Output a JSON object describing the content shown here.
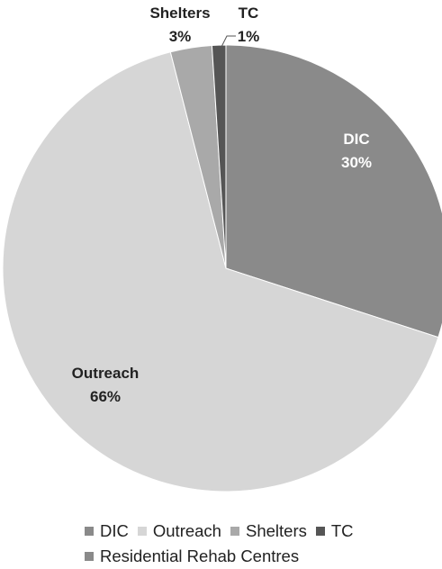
{
  "chart_data": {
    "type": "pie",
    "slices": [
      {
        "name": "DIC",
        "value": 30,
        "display": "30%",
        "color": "#8a8a8a",
        "label_color": "#ffffff"
      },
      {
        "name": "Outreach",
        "value": 66,
        "display": "66%",
        "color": "#d6d6d6",
        "label_color": "#222222"
      },
      {
        "name": "Shelters",
        "value": 3,
        "display": "3%",
        "color": "#a9a9a9",
        "label_color": "#222222"
      },
      {
        "name": "TC",
        "value": 1,
        "display": "1%",
        "color": "#555555",
        "label_color": "#222222"
      }
    ],
    "legend_position": "bottom",
    "legend": [
      {
        "label": "DIC",
        "color": "#8a8a8a"
      },
      {
        "label": "Outreach",
        "color": "#d6d6d6"
      },
      {
        "label": "Shelters",
        "color": "#a9a9a9"
      },
      {
        "label": "TC",
        "color": "#555555"
      },
      {
        "label": "Residential Rehab Centres",
        "color": "#8a8a8a"
      }
    ]
  }
}
